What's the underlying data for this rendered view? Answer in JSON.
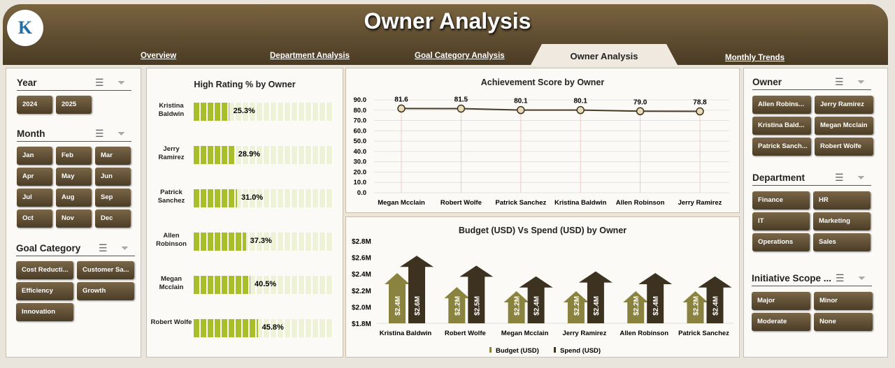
{
  "header": {
    "title": "Owner Analysis",
    "logo_text": "K"
  },
  "tabs": [
    {
      "label": "Overview"
    },
    {
      "label": "Department Analysis"
    },
    {
      "label": "Goal Category Analysis"
    },
    {
      "label": "Owner Analysis",
      "active": true
    },
    {
      "label": "Monthly Trends"
    }
  ],
  "left": {
    "year": {
      "title": "Year",
      "items": [
        "2024",
        "2025"
      ]
    },
    "month": {
      "title": "Month",
      "items": [
        "Jan",
        "Feb",
        "Mar",
        "Apr",
        "May",
        "Jun",
        "Jul",
        "Aug",
        "Sep",
        "Oct",
        "Nov",
        "Dec"
      ]
    },
    "goal": {
      "title": "Goal Category",
      "items": [
        "Cost Reducti...",
        "Customer Sa...",
        "Efficiency",
        "Growth",
        "Innovation"
      ]
    }
  },
  "right": {
    "owner": {
      "title": "Owner",
      "items": [
        "Allen Robins...",
        "Jerry Ramirez",
        "Kristina Bald...",
        "Megan Mcclain",
        "Patrick Sanch...",
        "Robert Wolfe"
      ]
    },
    "department": {
      "title": "Department",
      "items": [
        "Finance",
        "HR",
        "IT",
        "Marketing",
        "Operations",
        "Sales"
      ]
    },
    "scope": {
      "title": "Initiative Scope ...",
      "items": [
        "Major",
        "Minor",
        "Moderate",
        "None"
      ]
    }
  },
  "colors": {
    "brand": "#5e4b30",
    "fill": "#a9bf2a",
    "track": "#eef2d6",
    "budget": "#8a8340",
    "spend": "#3d3120"
  },
  "chart_data": [
    {
      "type": "bar",
      "title": "High Rating % by Owner",
      "categories": [
        "Kristina Baldwin",
        "Jerry Ramirez",
        "Patrick Sanchez",
        "Allen Robinson",
        "Megan Mcclain",
        "Robert Wolfe"
      ],
      "values": [
        25.3,
        28.9,
        31.0,
        37.3,
        40.5,
        45.8
      ],
      "labels": [
        "25.3%",
        "28.9%",
        "31.0%",
        "37.3%",
        "40.5%",
        "45.8%"
      ],
      "xlim": [
        0,
        100
      ]
    },
    {
      "type": "line",
      "title": "Achievement Score by Owner",
      "categories": [
        "Megan Mcclain",
        "Robert Wolfe",
        "Patrick Sanchez",
        "Kristina Baldwin",
        "Allen Robinson",
        "Jerry Ramirez"
      ],
      "values": [
        81.6,
        81.5,
        80.1,
        80.1,
        79.0,
        78.8
      ],
      "labels": [
        "81.6",
        "81.5",
        "80.1",
        "80.1",
        "79.0",
        "78.8"
      ],
      "yticks": [
        "90.0",
        "80.0",
        "70.0",
        "60.0",
        "50.0",
        "40.0",
        "30.0",
        "20.0",
        "10.0",
        "0.0"
      ],
      "ylim": [
        0,
        90
      ]
    },
    {
      "type": "bar",
      "title": "Budget (USD) Vs Spend (USD) by Owner",
      "categories": [
        "Kristina Baldwin",
        "Robert Wolfe",
        "Megan Mcclain",
        "Jerry Ramirez",
        "Allen Robinson",
        "Patrick Sanchez"
      ],
      "series": [
        {
          "name": "Budget (USD)",
          "values": [
            2.41,
            2.24,
            2.19,
            2.19,
            2.19,
            2.19
          ],
          "labels": [
            "$2.4M",
            "$2.2M",
            "$2.2M",
            "$2.2M",
            "$2.2M",
            "$2.2M"
          ]
        },
        {
          "name": "Spend (USD)",
          "values": [
            2.62,
            2.5,
            2.37,
            2.43,
            2.41,
            2.37
          ],
          "labels": [
            "$2.6M",
            "$2.5M",
            "$2.4M",
            "$2.4M",
            "$2.4M",
            "$2.4M"
          ]
        }
      ],
      "yticks": [
        "$2.8M",
        "$2.6M",
        "$2.4M",
        "$2.2M",
        "$2.0M",
        "$1.8M"
      ],
      "ylim": [
        1.8,
        2.8
      ]
    }
  ]
}
